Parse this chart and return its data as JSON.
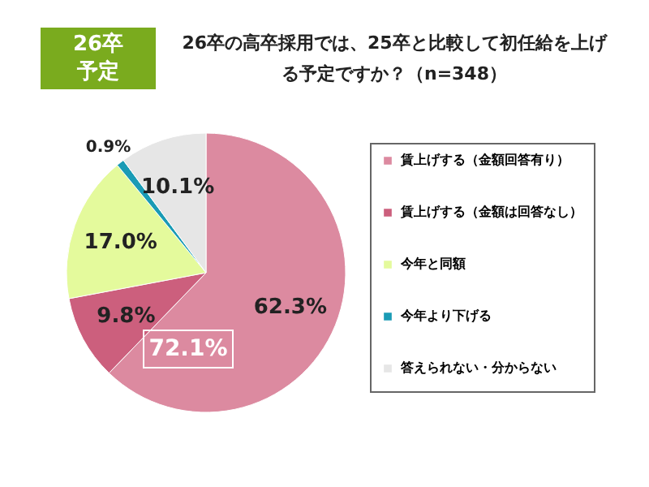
{
  "chart_data": {
    "type": "pie",
    "title": "26卒の高卒採用では、25卒と比較して初任給を上げる予定ですか？（n=348）",
    "categories": [
      "賃上げする（金額回答有り）",
      "賃上げする（金額は回答なし）",
      "今年と同額",
      "今年より下げる",
      "答えられない・分からない"
    ],
    "values": [
      62.3,
      9.8,
      17.0,
      0.9,
      10.1
    ],
    "value_labels": [
      "62.3%",
      "9.8%",
      "17.0%",
      "0.9%",
      "10.1%"
    ],
    "colors": [
      "#dc8aa0",
      "#cc5f7d",
      "#e4fa9c",
      "#1a9bb5",
      "#e6e6e6"
    ],
    "legend": "right",
    "annotations": [
      "26卒予定",
      "72.1%"
    ]
  }
}
